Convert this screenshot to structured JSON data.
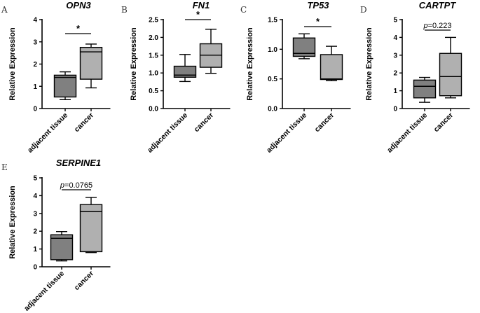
{
  "chart_data": [
    {
      "type": "box",
      "panel": "A",
      "title": "OPN3",
      "ylabel": "Relative Expression",
      "ylim": [
        0,
        4
      ],
      "yticks": [
        0,
        1,
        2,
        3,
        4
      ],
      "categories": [
        "adjacent tissue",
        "cancer"
      ],
      "significance": "*",
      "boxes": [
        {
          "name": "adjacent tissue",
          "min": 0.4,
          "q1": 0.52,
          "median": 1.4,
          "q3": 1.5,
          "max": 1.65
        },
        {
          "name": "cancer",
          "min": 0.93,
          "q1": 1.32,
          "median": 2.55,
          "q3": 2.75,
          "max": 2.9
        }
      ]
    },
    {
      "type": "box",
      "panel": "B",
      "title": "FN1",
      "ylabel": "Relative Expression",
      "ylim": [
        0,
        2.5
      ],
      "yticks": [
        0.0,
        0.5,
        1.0,
        1.5,
        2.0,
        2.5
      ],
      "categories": [
        "adjacent tissue",
        "cancer"
      ],
      "significance": "*",
      "boxes": [
        {
          "name": "adjacent tissue",
          "min": 0.76,
          "q1": 0.88,
          "median": 0.94,
          "q3": 1.19,
          "max": 1.52
        },
        {
          "name": "cancer",
          "min": 0.99,
          "q1": 1.16,
          "median": 1.5,
          "q3": 1.82,
          "max": 2.23
        }
      ]
    },
    {
      "type": "box",
      "panel": "C",
      "title": "TP53",
      "ylabel": "Relative Expression",
      "ylim": [
        0,
        1.5
      ],
      "yticks": [
        0.0,
        0.5,
        1.0,
        1.5
      ],
      "categories": [
        "adjacent tissue",
        "cancer"
      ],
      "significance": "*",
      "boxes": [
        {
          "name": "adjacent tissue",
          "min": 0.84,
          "q1": 0.88,
          "median": 0.93,
          "q3": 1.19,
          "max": 1.26
        },
        {
          "name": "cancer",
          "min": 0.47,
          "q1": 0.49,
          "median": 0.5,
          "q3": 0.91,
          "max": 1.05
        }
      ]
    },
    {
      "type": "box",
      "panel": "D",
      "title": "CARTPT",
      "ylabel": "Relative Expression",
      "ylim": [
        0,
        5
      ],
      "yticks": [
        0,
        1,
        2,
        3,
        4,
        5
      ],
      "categories": [
        "adjacent tissue",
        "cancer"
      ],
      "significance_p": "=0.223",
      "boxes": [
        {
          "name": "adjacent tissue",
          "min": 0.35,
          "q1": 0.6,
          "median": 1.25,
          "q3": 1.6,
          "max": 1.75
        },
        {
          "name": "cancer",
          "min": 0.6,
          "q1": 0.72,
          "median": 1.8,
          "q3": 3.1,
          "max": 4.0
        }
      ]
    },
    {
      "type": "box",
      "panel": "E",
      "title": "SERPINE1",
      "ylabel": "Relative Expression",
      "ylim": [
        0,
        5
      ],
      "yticks": [
        0,
        1,
        2,
        3,
        4,
        5
      ],
      "categories": [
        "adjacent tissue",
        "cancer"
      ],
      "significance_p": "=0.0765",
      "boxes": [
        {
          "name": "adjacent tissue",
          "min": 0.33,
          "q1": 0.4,
          "median": 1.6,
          "q3": 1.8,
          "max": 1.98
        },
        {
          "name": "cancer",
          "min": 0.8,
          "q1": 0.85,
          "median": 3.1,
          "q3": 3.5,
          "max": 3.9
        }
      ]
    }
  ],
  "colors": {
    "box_left": "#808080",
    "box_right": "#b0b0b0",
    "line": "#000000"
  }
}
